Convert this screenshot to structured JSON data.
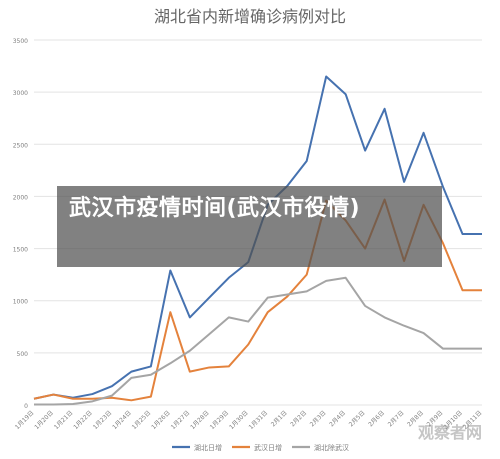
{
  "overlay": {
    "headline": "武汉市疫情时间(武汉市役情)"
  },
  "watermark": {
    "text": "观察者网"
  },
  "colors": {
    "series_hubei": "#4672b0",
    "series_wuhan": "#e4823c",
    "series_hubei_non_wuhan": "#a5a5a5",
    "grid": "#e3e3e3",
    "axis_text": "#7f7f7f",
    "title": "#666666"
  },
  "chart_data": {
    "type": "line",
    "title": "湖北省内新增确诊病例对比",
    "xlabel": "",
    "ylabel": "",
    "ylim": [
      0,
      3500
    ],
    "yticks": [
      0,
      500,
      1000,
      1500,
      2000,
      2500,
      3000,
      3500
    ],
    "grid": "horizontal",
    "legend_position": "bottom",
    "categories": [
      "1月19日",
      "1月20日",
      "1月21日",
      "1月22日",
      "1月23日",
      "1月24日",
      "1月25日",
      "1月26日",
      "1月27日",
      "1月28日",
      "1月29日",
      "1月30日",
      "1月31日",
      "2月1日",
      "2月2日",
      "2月3日",
      "2月4日",
      "2月5日",
      "2月6日",
      "2月7日",
      "2月8日",
      "2月9日",
      "2月10日",
      "2月11日"
    ],
    "series": [
      {
        "name": "湖北日增",
        "color": "#4672b0",
        "values": [
          60,
          100,
          70,
          105,
          180,
          320,
          370,
          1290,
          840,
          1030,
          1220,
          1370,
          1920,
          2100,
          2340,
          3150,
          2980,
          2440,
          2840,
          2140,
          2610,
          2090,
          1640,
          1640
        ]
      },
      {
        "name": "武汉日增",
        "color": "#e4823c",
        "values": [
          60,
          100,
          60,
          60,
          70,
          45,
          80,
          890,
          320,
          360,
          370,
          580,
          890,
          1040,
          1250,
          1960,
          1770,
          1500,
          1970,
          1380,
          1920,
          1550,
          1100,
          1100
        ]
      },
      {
        "name": "湖北除武汉",
        "color": "#a5a5a5",
        "values": [
          5,
          5,
          10,
          35,
          90,
          260,
          290,
          400,
          520,
          680,
          840,
          800,
          1030,
          1060,
          1090,
          1190,
          1220,
          950,
          840,
          760,
          690,
          540,
          540,
          540
        ]
      }
    ]
  }
}
